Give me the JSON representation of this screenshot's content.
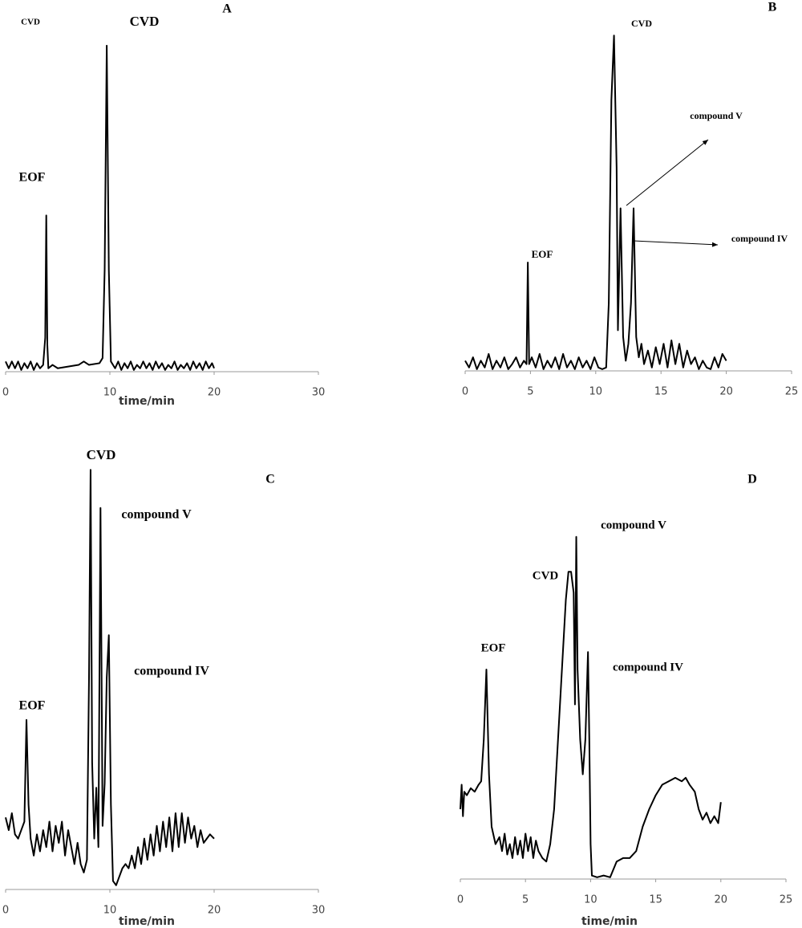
{
  "chart_data": [
    {
      "type": "line",
      "title": "A",
      "xlabel": "time/min",
      "annotations": [
        "CVD",
        "CVD",
        "EOF"
      ],
      "color": "#000000",
      "xlim": [
        0,
        30
      ],
      "xticks": [
        0,
        10,
        20,
        30
      ],
      "ylim": [
        0,
        100
      ],
      "x": [
        0,
        0.3,
        0.6,
        0.9,
        1.2,
        1.5,
        1.8,
        2.1,
        2.4,
        2.7,
        3,
        3.3,
        3.6,
        3.8,
        3.9,
        4,
        4.1,
        4.5,
        5,
        6,
        7,
        7.5,
        8,
        9,
        9.3,
        9.5,
        9.7,
        9.9,
        10.1,
        10.5,
        10.8,
        11.1,
        11.4,
        11.7,
        12,
        12.3,
        12.6,
        12.9,
        13.2,
        13.5,
        13.8,
        14.1,
        14.4,
        14.7,
        15,
        15.3,
        15.6,
        15.9,
        16.2,
        16.5,
        16.8,
        17.1,
        17.4,
        17.7,
        18,
        18.3,
        18.6,
        18.9,
        19.2,
        19.5,
        19.8,
        20
      ],
      "values": [
        3,
        1,
        3,
        1,
        3,
        0.5,
        2.5,
        1,
        3,
        0.5,
        2.5,
        1,
        2,
        10,
        46,
        8,
        1,
        2,
        1,
        1.5,
        2,
        3,
        2,
        2.5,
        4,
        30,
        96,
        30,
        3,
        1,
        3,
        0.5,
        2.5,
        1,
        3,
        0.5,
        2,
        1,
        3,
        1,
        2.5,
        0.5,
        3,
        1,
        2.5,
        0.5,
        2,
        1,
        3,
        0.5,
        2,
        1,
        2.5,
        0.5,
        3,
        1,
        2.5,
        0.5,
        3,
        1,
        2.5,
        1
      ]
    },
    {
      "type": "line",
      "title": "B",
      "annotations": [
        "CVD",
        "compound V",
        "compound IV",
        "EOF"
      ],
      "color": "#000000",
      "xlim": [
        0,
        25
      ],
      "xticks": [
        0,
        5,
        10,
        15,
        20,
        25
      ],
      "ylim": [
        0,
        100
      ],
      "x": [
        0,
        0.3,
        0.6,
        0.9,
        1.2,
        1.5,
        1.8,
        2.1,
        2.4,
        2.7,
        3,
        3.3,
        3.6,
        3.9,
        4.2,
        4.5,
        4.7,
        4.8,
        4.9,
        5.1,
        5.4,
        5.7,
        6,
        6.3,
        6.6,
        6.9,
        7.2,
        7.5,
        7.8,
        8.1,
        8.4,
        8.7,
        9,
        9.3,
        9.6,
        9.9,
        10.2,
        10.5,
        10.8,
        11,
        11.2,
        11.4,
        11.6,
        11.7,
        11.9,
        12.1,
        12.3,
        12.5,
        12.7,
        12.9,
        13.1,
        13.3,
        13.5,
        13.7,
        14,
        14.3,
        14.6,
        14.9,
        15.2,
        15.5,
        15.8,
        16.1,
        16.4,
        16.7,
        17,
        17.3,
        17.6,
        17.9,
        18.2,
        18.5,
        18.8,
        19.1,
        19.4,
        19.7,
        20
      ],
      "values": [
        3,
        1,
        4,
        0.5,
        3,
        1,
        5,
        0.5,
        3,
        1,
        4,
        0.5,
        2,
        4,
        1,
        3,
        2,
        32,
        2,
        4,
        1,
        5,
        0.5,
        3,
        1,
        4,
        0.5,
        5,
        1,
        3,
        0.5,
        4,
        1,
        3,
        0.5,
        4,
        1,
        0.5,
        1,
        20,
        80,
        99,
        60,
        12,
        48,
        10,
        3,
        8,
        20,
        48,
        10,
        4,
        8,
        2,
        6,
        1,
        7,
        2,
        8,
        1,
        9,
        2,
        8,
        1,
        6,
        2,
        4,
        0.5,
        3,
        1,
        0.5,
        4,
        1,
        5,
        3
      ]
    },
    {
      "type": "line",
      "title": "C",
      "xlabel": "time/min",
      "annotations": [
        "CVD",
        "compound V",
        "compound IV",
        "EOF"
      ],
      "color": "#000000",
      "xlim": [
        0,
        30
      ],
      "xticks": [
        0,
        10,
        20,
        30
      ],
      "ylim": [
        0,
        100
      ],
      "x": [
        0,
        0.3,
        0.6,
        0.9,
        1.2,
        1.5,
        1.8,
        2,
        2.2,
        2.4,
        2.7,
        3,
        3.3,
        3.6,
        3.9,
        4.2,
        4.5,
        4.8,
        5.1,
        5.4,
        5.7,
        6,
        6.3,
        6.6,
        6.9,
        7.2,
        7.5,
        7.8,
        8,
        8.15,
        8.3,
        8.5,
        8.7,
        8.9,
        9.1,
        9.3,
        9.5,
        9.7,
        9.9,
        10.1,
        10.3,
        10.6,
        10.9,
        11.2,
        11.5,
        11.8,
        12.1,
        12.4,
        12.7,
        13,
        13.3,
        13.6,
        13.9,
        14.2,
        14.5,
        14.8,
        15.1,
        15.4,
        15.7,
        16,
        16.3,
        16.6,
        16.9,
        17.2,
        17.5,
        17.8,
        18.1,
        18.4,
        18.7,
        19,
        19.3,
        19.6,
        20
      ],
      "values": [
        17,
        14,
        18,
        13,
        12,
        14,
        16,
        40,
        20,
        12,
        8,
        13,
        9,
        14,
        10,
        16,
        9,
        15,
        11,
        16,
        8,
        14,
        10,
        6,
        11,
        6,
        4,
        7,
        50,
        99,
        30,
        12,
        24,
        10,
        90,
        15,
        25,
        50,
        60,
        20,
        2,
        1,
        3,
        5,
        6,
        5,
        8,
        5,
        10,
        6,
        12,
        7,
        13,
        8,
        15,
        9,
        16,
        10,
        17,
        9,
        18,
        10,
        18,
        11,
        17,
        12,
        15,
        10,
        14,
        11,
        12,
        13,
        12
      ]
    },
    {
      "type": "line",
      "title": "D",
      "xlabel": "time/min",
      "annotations": [
        "compound V",
        "CVD",
        "compound IV",
        "EOF"
      ],
      "color": "#000000",
      "xlim": [
        0,
        25
      ],
      "xticks": [
        0,
        5,
        10,
        15,
        20,
        25
      ],
      "ylim": [
        0,
        100
      ],
      "x": [
        0,
        0.1,
        0.2,
        0.3,
        0.5,
        0.8,
        1.1,
        1.4,
        1.6,
        1.8,
        2,
        2.2,
        2.4,
        2.7,
        3,
        3.2,
        3.4,
        3.6,
        3.8,
        4,
        4.2,
        4.4,
        4.6,
        4.8,
        5,
        5.2,
        5.4,
        5.6,
        5.8,
        6,
        6.3,
        6.6,
        6.9,
        7.2,
        7.5,
        7.8,
        8.1,
        8.3,
        8.5,
        8.7,
        8.8,
        8.9,
        9,
        9.2,
        9.4,
        9.6,
        9.8,
        9.9,
        10,
        10.1,
        10.5,
        11,
        11.5,
        12,
        12.5,
        13,
        13.5,
        14,
        14.5,
        15,
        15.5,
        16,
        16.5,
        17,
        17.3,
        17.6,
        18,
        18.3,
        18.6,
        18.9,
        19.2,
        19.5,
        19.8,
        20
      ],
      "values": [
        20,
        27,
        18,
        25,
        24,
        26,
        25,
        27,
        28,
        40,
        60,
        30,
        15,
        10,
        12,
        8,
        13,
        7,
        10,
        6,
        12,
        7,
        11,
        6,
        13,
        8,
        12,
        6,
        11,
        8,
        6,
        5,
        10,
        20,
        40,
        60,
        80,
        88,
        88,
        82,
        50,
        98,
        60,
        40,
        30,
        40,
        65,
        40,
        10,
        1,
        0.5,
        1,
        0.5,
        5,
        6,
        6,
        8,
        15,
        20,
        24,
        27,
        28,
        29,
        28,
        29,
        27,
        25,
        20,
        17,
        19,
        16,
        18,
        16,
        22
      ]
    }
  ]
}
